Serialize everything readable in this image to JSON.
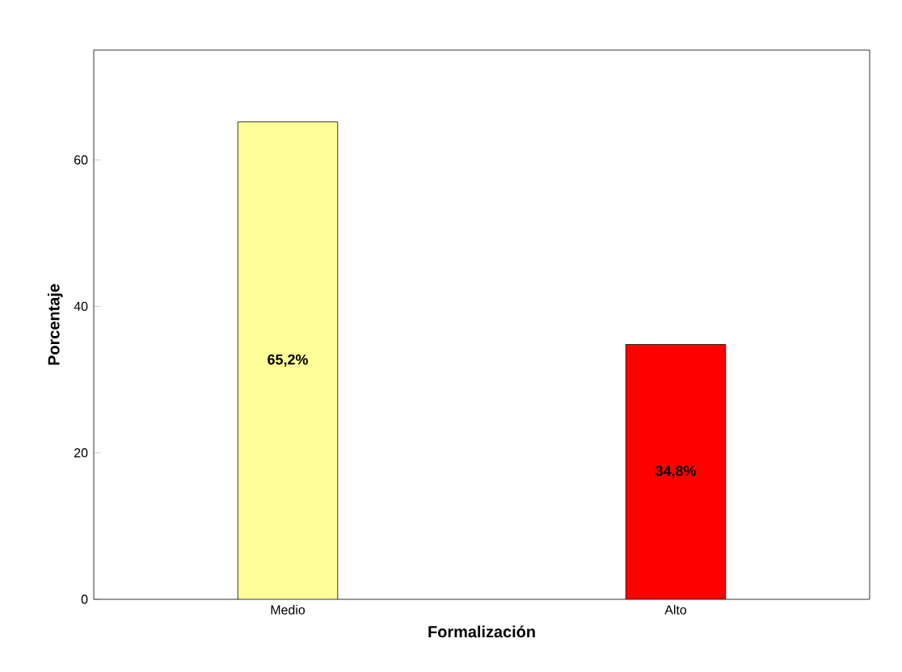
{
  "chart_data": {
    "type": "bar",
    "xlabel": "Formalización",
    "ylabel": "Porcentaje",
    "categories": [
      "Medio",
      "Alto"
    ],
    "values": [
      65.2,
      34.8
    ],
    "colors": [
      "#ffff99",
      "#ff0000"
    ],
    "value_labels": [
      "65,2%",
      "34,8%"
    ],
    "ylim": [
      0,
      75
    ],
    "yticks": [
      0,
      20,
      40,
      60
    ],
    "grid": false
  }
}
